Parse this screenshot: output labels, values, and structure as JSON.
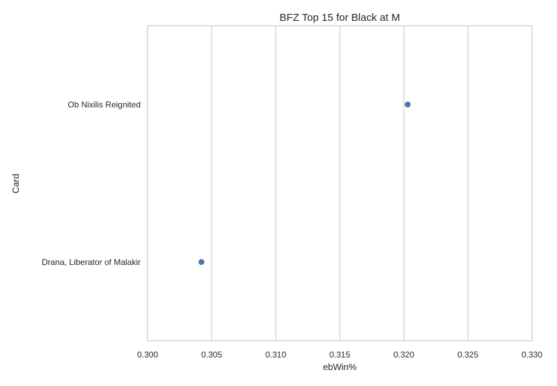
{
  "chart_data": {
    "type": "scatter",
    "title": "BFZ Top 15 for Black at M",
    "xlabel": "ebWin%",
    "ylabel": "Card",
    "xlim": [
      0.3,
      0.33
    ],
    "xticks": [
      "0.300",
      "0.305",
      "0.310",
      "0.315",
      "0.320",
      "0.325",
      "0.330"
    ],
    "categories": [
      "Ob Nixilis Reignited",
      "Drana, Liberator of Malakir"
    ],
    "points": [
      {
        "card": "Ob Nixilis Reignited",
        "x": 0.3203
      },
      {
        "card": "Drana, Liberator of Malakir",
        "x": 0.3042
      }
    ],
    "grid": "vertical",
    "legend": "none",
    "point_color": "#4c72b0",
    "grid_color": "#cccccc"
  }
}
